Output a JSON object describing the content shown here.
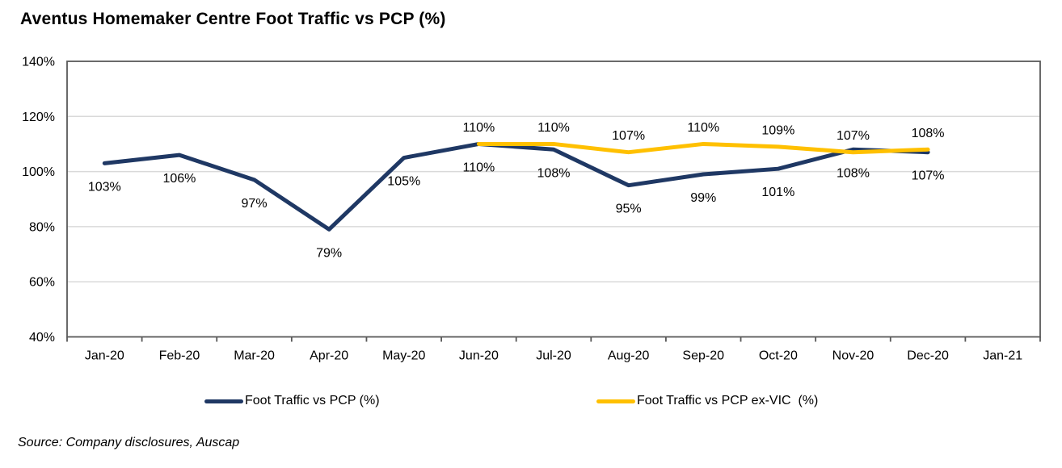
{
  "title": "Aventus Homemaker Centre Foot Traffic vs PCP (%)",
  "source": "Source: Company disclosures, Auscap",
  "colors": {
    "navy": "#1F3864",
    "gold": "#FFC000",
    "gridline": "#D9D9D9",
    "axis": "#595959",
    "label_text": "#000000"
  },
  "legend": [
    {
      "label": "Foot Traffic vs PCP (%)",
      "color": "#1F3864"
    },
    {
      "label": "Foot Traffic vs PCP ex-VIC  (%)",
      "color": "#FFC000"
    }
  ],
  "chart_data": {
    "type": "line",
    "title": "Aventus Homemaker Centre Foot Traffic vs PCP (%)",
    "categories": [
      "Jan-20",
      "Feb-20",
      "Mar-20",
      "Apr-20",
      "May-20",
      "Jun-20",
      "Jul-20",
      "Aug-20",
      "Sep-20",
      "Oct-20",
      "Nov-20",
      "Dec-20",
      "Jan-21"
    ],
    "series": [
      {
        "name": "Foot Traffic vs PCP (%)",
        "color": "#1F3864",
        "label_position": "below",
        "values": [
          103,
          106,
          97,
          79,
          105,
          110,
          108,
          95,
          99,
          101,
          108,
          107,
          null
        ]
      },
      {
        "name": "Foot Traffic vs PCP ex-VIC  (%)",
        "color": "#FFC000",
        "label_position": "above",
        "values": [
          null,
          null,
          null,
          null,
          null,
          110,
          110,
          107,
          110,
          109,
          107,
          108,
          null
        ]
      }
    ],
    "xlabel": "",
    "ylabel": "",
    "ylim": [
      40,
      140
    ],
    "y_tick_step": 20,
    "y_tick_labels": [
      "40%",
      "60%",
      "80%",
      "100%",
      "120%",
      "140%"
    ],
    "grid": true,
    "data_labels": true,
    "legend_position": "bottom"
  }
}
